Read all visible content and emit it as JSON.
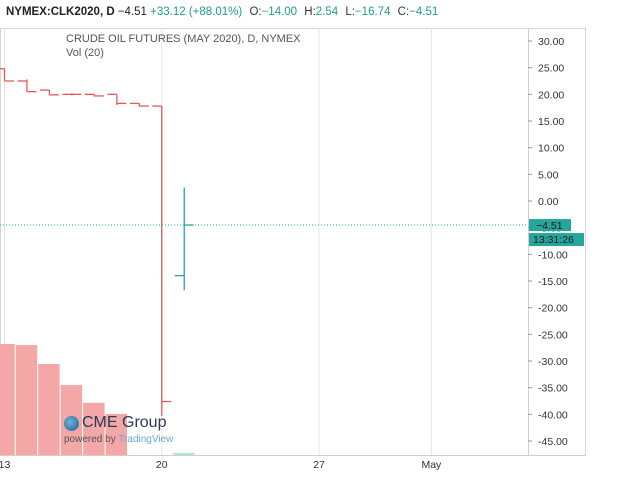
{
  "header": {
    "symbol": "NYMEX:CLK2020, D",
    "last": "−4.51",
    "change": "+33.12 (+88.01%)",
    "o_label": "O:",
    "o_value": "−14.00",
    "h_label": "H:",
    "h_value": "2.54",
    "l_label": "L:",
    "l_value": "−16.74",
    "c_label": "C:",
    "c_value": "−4.51"
  },
  "logo": {
    "brand": "CME Group",
    "powered": "powered by",
    "tradingview": "TradingView"
  },
  "chart_data": {
    "type": "line",
    "title": "CRUDE OIL FUTURES (MAY 2020), D, NYMEX",
    "subtitle": "Vol (20)",
    "ylim": [
      -48,
      32
    ],
    "y_ticks": [
      "30.00",
      "25.00",
      "20.00",
      "15.00",
      "10.00",
      "5.00",
      "0.00",
      "-5.00",
      "-10.00",
      "-15.00",
      "-20.00",
      "-25.00",
      "-30.00",
      "-35.00",
      "-40.00",
      "-45.00"
    ],
    "y_tick_values": [
      30,
      25,
      20,
      15,
      10,
      5,
      0,
      -5,
      -10,
      -15,
      -20,
      -25,
      -30,
      -35,
      -40,
      -45
    ],
    "x_ticks": [
      {
        "label": "13",
        "x": 13
      },
      {
        "label": "20",
        "x": 20
      },
      {
        "label": "27",
        "x": 27
      },
      {
        "label": "May",
        "x": 32
      }
    ],
    "x_range": [
      12.8,
      36.3
    ],
    "last_price_label": "−4.51",
    "last_price_value": -4.51,
    "countdown": "13:31:26",
    "colors": {
      "down": "#e05a5a",
      "up": "#26a69a",
      "volume": "#f4a7a7",
      "price_line": "#26a69a"
    },
    "price_series": [
      {
        "x": 13,
        "o": 24.8,
        "h": 24.8,
        "l": 22.5,
        "c": 22.5,
        "dir": "down"
      },
      {
        "x": 14,
        "o": 22.5,
        "h": 22.8,
        "l": 20.5,
        "c": 20.5,
        "dir": "down"
      },
      {
        "x": 15,
        "o": 20.8,
        "h": 20.8,
        "l": 19.8,
        "c": 19.9,
        "dir": "down"
      },
      {
        "x": 16,
        "o": 20.0,
        "h": 20.2,
        "l": 19.8,
        "c": 20.0,
        "dir": "down"
      },
      {
        "x": 17,
        "o": 20.0,
        "h": 20.0,
        "l": 19.6,
        "c": 19.7,
        "dir": "down"
      },
      {
        "x": 18,
        "o": 20.0,
        "h": 20.0,
        "l": 18.0,
        "c": 18.3,
        "dir": "down"
      },
      {
        "x": 19,
        "o": 18.3,
        "h": 18.3,
        "l": 17.7,
        "c": 17.8,
        "dir": "down"
      },
      {
        "x": 20,
        "o": 17.8,
        "h": 17.8,
        "l": -40.3,
        "c": -37.6,
        "dir": "down"
      },
      {
        "x": 21,
        "o": -14.0,
        "h": 2.54,
        "l": -16.74,
        "c": -4.51,
        "dir": "up"
      }
    ],
    "volume_series": [
      {
        "x": 13,
        "v": 1.0
      },
      {
        "x": 14,
        "v": 0.99
      },
      {
        "x": 15,
        "v": 0.82
      },
      {
        "x": 16,
        "v": 0.63
      },
      {
        "x": 17,
        "v": 0.47
      },
      {
        "x": 18,
        "v": 0.37
      },
      {
        "x": 21,
        "v": 0.02
      }
    ]
  }
}
